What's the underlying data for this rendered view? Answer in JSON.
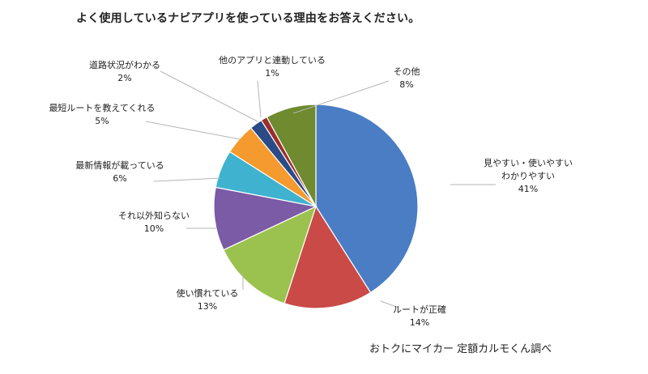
{
  "chart_data": {
    "type": "pie",
    "title": "よく使用しているナビアプリを使っている理由をお答えください。",
    "slices": [
      {
        "label_lines": [
          "見やすい・使いやすい",
          "わかりやすい"
        ],
        "pct_label": "41%",
        "value": 41,
        "color": "#4a7dc4"
      },
      {
        "label_lines": [
          "ルートが正確"
        ],
        "pct_label": "14%",
        "value": 14,
        "color": "#c94a47"
      },
      {
        "label_lines": [
          "使い慣れている"
        ],
        "pct_label": "13%",
        "value": 13,
        "color": "#9bc24e"
      },
      {
        "label_lines": [
          "それ以外知らない"
        ],
        "pct_label": "10%",
        "value": 10,
        "color": "#7b5aa6"
      },
      {
        "label_lines": [
          "最新情報が載っている"
        ],
        "pct_label": "6%",
        "value": 6,
        "color": "#3fb2cf"
      },
      {
        "label_lines": [
          "最短ルートを教えてくれる"
        ],
        "pct_label": "5%",
        "value": 5,
        "color": "#f59a2e"
      },
      {
        "label_lines": [
          "道路状況がわかる"
        ],
        "pct_label": "2%",
        "value": 2,
        "color": "#2a4b86"
      },
      {
        "label_lines": [
          "他のアプリと連動している"
        ],
        "pct_label": "1%",
        "value": 1,
        "color": "#9a2f2d"
      },
      {
        "label_lines": [
          "その他"
        ],
        "pct_label": "8%",
        "value": 8,
        "color": "#6f8a2f"
      }
    ]
  },
  "source": "おトクにマイカー 定額カルモくん調べ"
}
